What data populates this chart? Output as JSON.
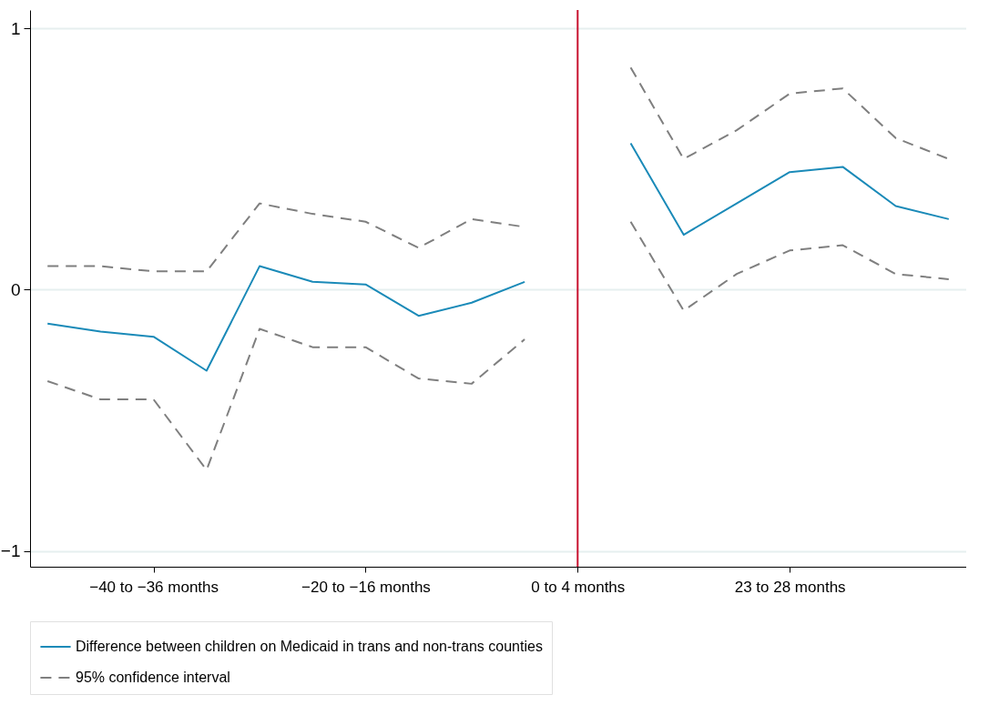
{
  "chart_data": {
    "type": "line",
    "categories": [
      null,
      null,
      "−40 to −36 months",
      null,
      null,
      null,
      "−20 to −16 months",
      null,
      null,
      null,
      "0 to 4 months",
      null,
      null,
      null,
      "23 to 28 months",
      null,
      null,
      null
    ],
    "series": [
      {
        "name": "Difference between children on Medicaid in trans and non-trans counties",
        "color": "#1a8ab8",
        "line_style": "solid",
        "values": [
          -0.13,
          -0.16,
          -0.18,
          -0.31,
          0.09,
          0.03,
          0.02,
          -0.1,
          -0.05,
          0.03,
          null,
          0.56,
          0.21,
          0.33,
          0.45,
          0.47,
          0.32,
          0.27
        ]
      },
      {
        "name": "95% confidence interval",
        "color": "#7f7f7f",
        "line_style": "dashed",
        "values": [
          0.09,
          0.09,
          0.07,
          0.07,
          0.33,
          0.29,
          0.26,
          0.16,
          0.27,
          0.24,
          null,
          0.85,
          0.5,
          0.61,
          0.75,
          0.77,
          0.58,
          0.5
        ]
      },
      {
        "color": "#7f7f7f",
        "line_style": "dashed",
        "values": [
          -0.35,
          -0.42,
          -0.42,
          -0.69,
          -0.15,
          -0.22,
          -0.22,
          -0.34,
          -0.36,
          -0.19,
          null,
          0.26,
          -0.08,
          0.06,
          0.15,
          0.17,
          0.06,
          0.04
        ]
      }
    ],
    "ylim": [
      -1.06,
      1.07
    ],
    "yticks": [
      -1,
      0,
      1
    ],
    "grid": "y",
    "legend": "bottom",
    "ref_lines": [
      {
        "axis": "x",
        "value": "0 to 4 months",
        "color": "#c8102e"
      }
    ]
  }
}
